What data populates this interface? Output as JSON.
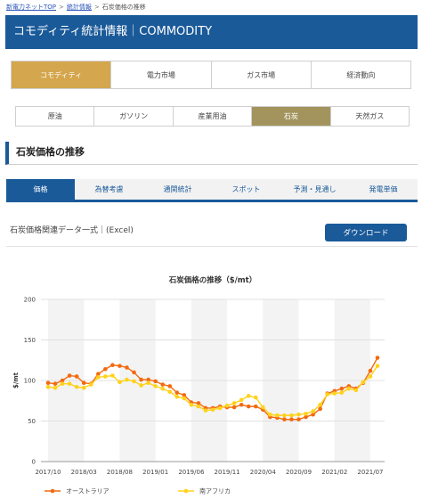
{
  "breadcrumb": {
    "items": [
      "新電力ネットTOP",
      "統計情報",
      "石炭価格の推移"
    ],
    "separator": ">"
  },
  "header": {
    "title": "コモディティ統計情報｜COMMODITY"
  },
  "category_tabs": [
    {
      "label": "コモディティ",
      "active": true
    },
    {
      "label": "電力市場",
      "active": false
    },
    {
      "label": "ガス市場",
      "active": false
    },
    {
      "label": "経済動向",
      "active": false
    }
  ],
  "sub_tabs": [
    {
      "label": "原油",
      "active": false
    },
    {
      "label": "ガソリン",
      "active": false
    },
    {
      "label": "産業用油",
      "active": false
    },
    {
      "label": "石炭",
      "active": true
    },
    {
      "label": "天然ガス",
      "active": false
    }
  ],
  "section": {
    "heading": "石炭価格の推移"
  },
  "data_tabs": [
    {
      "label": "価格",
      "active": true
    },
    {
      "label": "為替考慮",
      "active": false
    },
    {
      "label": "通関統計",
      "active": false
    },
    {
      "label": "スポット",
      "active": false
    },
    {
      "label": "予測・見通し",
      "active": false
    },
    {
      "label": "発電単価",
      "active": false
    }
  ],
  "download": {
    "file_text": "石炭価格関連データ一式｜(Excel)",
    "button_label": "ダウンロード"
  },
  "colors": {
    "brand_blue": "#1a5a99",
    "active_category": "#d4a64d",
    "active_subtab": "#a3945d",
    "series_australia": "#f26a0f",
    "series_south_africa": "#ffd21a"
  },
  "chart_data": {
    "type": "line",
    "title": "石炭価格の推移（$/mt）",
    "xlabel": "",
    "ylabel": "$/mt",
    "ylim": [
      0,
      200
    ],
    "yticks": [
      0,
      50,
      100,
      150,
      200
    ],
    "xtick_labels": [
      "2017/10",
      "2018/03",
      "2018/08",
      "2019/01",
      "2019/06",
      "2019/11",
      "2020/04",
      "2020/09",
      "2021/02",
      "2021/07"
    ],
    "grid": true,
    "legend_position": "bottom",
    "x": [
      "2017/10",
      "2017/11",
      "2017/12",
      "2018/01",
      "2018/02",
      "2018/03",
      "2018/04",
      "2018/05",
      "2018/06",
      "2018/07",
      "2018/08",
      "2018/09",
      "2018/10",
      "2018/11",
      "2018/12",
      "2019/01",
      "2019/02",
      "2019/03",
      "2019/04",
      "2019/05",
      "2019/06",
      "2019/07",
      "2019/08",
      "2019/09",
      "2019/10",
      "2019/11",
      "2019/12",
      "2020/01",
      "2020/02",
      "2020/03",
      "2020/04",
      "2020/05",
      "2020/06",
      "2020/07",
      "2020/08",
      "2020/09",
      "2020/10",
      "2020/11",
      "2020/12",
      "2021/01",
      "2021/02",
      "2021/03",
      "2021/04",
      "2021/05",
      "2021/06",
      "2021/07",
      "2021/08"
    ],
    "series": [
      {
        "name": "オーストラリア",
        "color": "#f26a0f",
        "values": [
          97,
          96,
          100,
          106,
          105,
          97,
          96,
          108,
          114,
          119,
          118,
          116,
          110,
          101,
          101,
          99,
          95,
          93,
          85,
          82,
          73,
          72,
          66,
          66,
          68,
          67,
          67,
          70,
          68,
          68,
          64,
          55,
          54,
          52,
          52,
          52,
          55,
          58,
          65,
          84,
          87,
          90,
          93,
          90,
          97,
          112,
          128
        ]
      },
      {
        "name": "南アフリカ",
        "color": "#ffd21a",
        "values": [
          92,
          91,
          96,
          96,
          92,
          91,
          95,
          104,
          105,
          106,
          98,
          101,
          99,
          94,
          97,
          93,
          90,
          86,
          80,
          78,
          70,
          68,
          63,
          64,
          66,
          69,
          72,
          76,
          81,
          79,
          67,
          58,
          57,
          57,
          57,
          58,
          59,
          62,
          70,
          83,
          84,
          85,
          90,
          88,
          98,
          105,
          118
        ]
      }
    ]
  }
}
